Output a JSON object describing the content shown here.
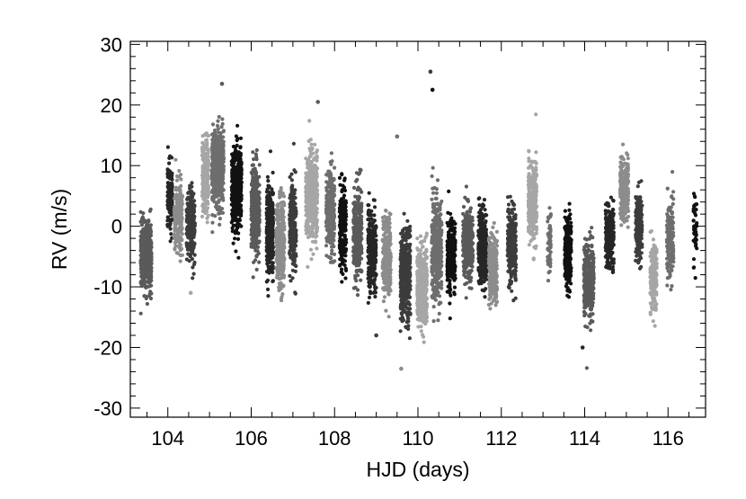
{
  "chart_data": {
    "type": "scatter",
    "title": "",
    "xlabel": "HJD (days)",
    "ylabel": "RV (m/s)",
    "xlim": [
      103.1,
      116.9
    ],
    "ylim": [
      -31.5,
      30.5
    ],
    "x_ticks": [
      104,
      106,
      108,
      110,
      112,
      114,
      116
    ],
    "y_ticks": [
      -30,
      -20,
      -10,
      0,
      10,
      20,
      30
    ],
    "grid": false,
    "legend": "none",
    "marker_colors": [
      "#5a5a5a",
      "#262626",
      "#8c8c8c",
      "#3c3c3c",
      "#a6a6a6",
      "#6e6e6e",
      "#111111"
    ],
    "nights": [
      {
        "center": 103.48,
        "halfwidth": 0.13,
        "mean": -5.0,
        "spread": 3.6,
        "n": 520
      },
      {
        "center": 104.05,
        "halfwidth": 0.06,
        "mean": 5.0,
        "spread": 3.5,
        "n": 150
      },
      {
        "center": 104.25,
        "halfwidth": 0.1,
        "mean": 1.5,
        "spread": 4.0,
        "n": 200
      },
      {
        "center": 104.55,
        "halfwidth": 0.1,
        "mean": 0.0,
        "spread": 4.0,
        "n": 240
      },
      {
        "center": 104.9,
        "halfwidth": 0.08,
        "mean": 8.5,
        "spread": 4.0,
        "n": 220
      },
      {
        "center": 105.2,
        "halfwidth": 0.14,
        "mean": 9.5,
        "spread": 4.2,
        "n": 520
      },
      {
        "center": 105.65,
        "halfwidth": 0.12,
        "mean": 6.0,
        "spread": 4.5,
        "n": 420
      },
      {
        "center": 106.1,
        "halfwidth": 0.1,
        "mean": 3.0,
        "spread": 4.5,
        "n": 400
      },
      {
        "center": 106.45,
        "halfwidth": 0.08,
        "mean": -1.0,
        "spread": 5.0,
        "n": 300
      },
      {
        "center": 106.7,
        "halfwidth": 0.1,
        "mean": -3.0,
        "spread": 5.0,
        "n": 300
      },
      {
        "center": 107.0,
        "halfwidth": 0.08,
        "mean": 0.0,
        "spread": 4.8,
        "n": 250
      },
      {
        "center": 107.45,
        "halfwidth": 0.14,
        "mean": 5.0,
        "spread": 5.0,
        "n": 460
      },
      {
        "center": 107.9,
        "halfwidth": 0.1,
        "mean": 2.0,
        "spread": 4.5,
        "n": 250
      },
      {
        "center": 108.2,
        "halfwidth": 0.08,
        "mean": 0.0,
        "spread": 4.5,
        "n": 200
      },
      {
        "center": 108.55,
        "halfwidth": 0.1,
        "mean": -1.0,
        "spread": 5.0,
        "n": 280
      },
      {
        "center": 108.9,
        "halfwidth": 0.1,
        "mean": -4.0,
        "spread": 4.5,
        "n": 260
      },
      {
        "center": 109.25,
        "halfwidth": 0.1,
        "mean": -5.0,
        "spread": 4.5,
        "n": 260
      },
      {
        "center": 109.7,
        "halfwidth": 0.12,
        "mean": -8.0,
        "spread": 4.8,
        "n": 420
      },
      {
        "center": 110.1,
        "halfwidth": 0.12,
        "mean": -10.0,
        "spread": 4.5,
        "n": 420
      },
      {
        "center": 110.45,
        "halfwidth": 0.12,
        "mean": -4.0,
        "spread": 5.5,
        "n": 360
      },
      {
        "center": 110.8,
        "halfwidth": 0.1,
        "mean": -5.0,
        "spread": 4.0,
        "n": 260
      },
      {
        "center": 111.2,
        "halfwidth": 0.12,
        "mean": -3.0,
        "spread": 4.0,
        "n": 300
      },
      {
        "center": 111.55,
        "halfwidth": 0.1,
        "mean": -3.5,
        "spread": 4.0,
        "n": 300
      },
      {
        "center": 111.8,
        "halfwidth": 0.1,
        "mean": -7.0,
        "spread": 3.5,
        "n": 250
      },
      {
        "center": 112.25,
        "halfwidth": 0.1,
        "mean": -3.5,
        "spread": 4.0,
        "n": 240
      },
      {
        "center": 112.75,
        "halfwidth": 0.1,
        "mean": 4.0,
        "spread": 4.5,
        "n": 320
      },
      {
        "center": 113.15,
        "halfwidth": 0.04,
        "mean": -3.0,
        "spread": 3.5,
        "n": 60
      },
      {
        "center": 113.6,
        "halfwidth": 0.08,
        "mean": -4.0,
        "spread": 4.0,
        "n": 240
      },
      {
        "center": 114.1,
        "halfwidth": 0.12,
        "mean": -9.0,
        "spread": 4.0,
        "n": 320
      },
      {
        "center": 114.6,
        "halfwidth": 0.1,
        "mean": -1.5,
        "spread": 3.5,
        "n": 240
      },
      {
        "center": 114.95,
        "halfwidth": 0.1,
        "mean": 6.0,
        "spread": 3.5,
        "n": 240
      },
      {
        "center": 115.3,
        "halfwidth": 0.08,
        "mean": 0.0,
        "spread": 3.5,
        "n": 180
      },
      {
        "center": 115.65,
        "halfwidth": 0.08,
        "mean": -8.5,
        "spread": 4.0,
        "n": 200
      },
      {
        "center": 116.05,
        "halfwidth": 0.08,
        "mean": -2.5,
        "spread": 4.0,
        "n": 200
      },
      {
        "center": 116.65,
        "halfwidth": 0.04,
        "mean": -0.5,
        "spread": 4.0,
        "n": 50
      }
    ],
    "outliers": [
      {
        "x": 105.3,
        "y": 23.5
      },
      {
        "x": 110.3,
        "y": 25.5
      },
      {
        "x": 110.35,
        "y": 22.5
      },
      {
        "x": 109.6,
        "y": -23.5
      },
      {
        "x": 109.5,
        "y": 14.8
      },
      {
        "x": 113.95,
        "y": -20.0
      },
      {
        "x": 104.55,
        "y": -11.0
      },
      {
        "x": 107.6,
        "y": 20.5
      },
      {
        "x": 109.0,
        "y": -18.0
      }
    ]
  }
}
